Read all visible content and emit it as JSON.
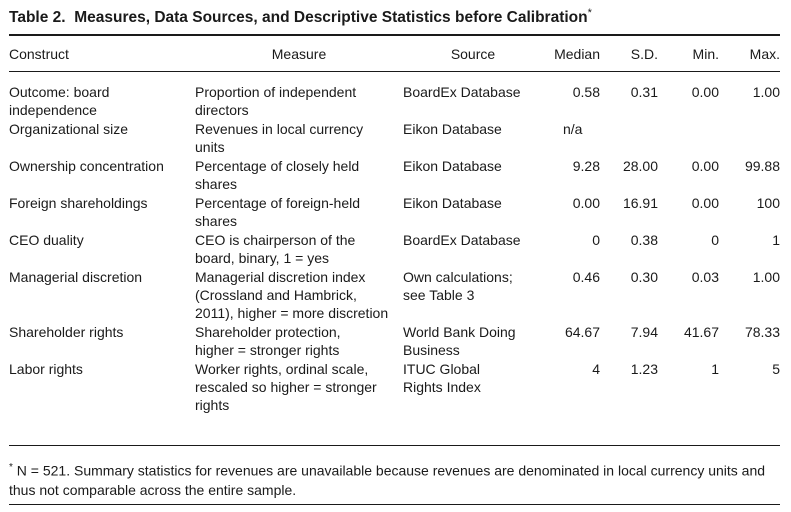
{
  "table": {
    "label": "Table 2.",
    "title": "Measures, Data Sources, and Descriptive Statistics before Calibration",
    "title_mark": "*",
    "headers": [
      "Construct",
      "Measure",
      "Source",
      "Median",
      "S.D.",
      "Min.",
      "Max."
    ],
    "rows": [
      {
        "construct": "Outcome: board independence",
        "measure": "Proportion of independent directors",
        "source": "BoardEx Database",
        "median": "0.58",
        "sd": "0.31",
        "min": "0.00",
        "max": "1.00"
      },
      {
        "construct": "Organizational size",
        "measure": "Revenues in local currency units",
        "source": "Eikon Database",
        "median": "n/a",
        "sd": "",
        "min": "",
        "max": ""
      },
      {
        "construct": "Ownership concentration",
        "measure": "Percentage of closely held shares",
        "source": "Eikon Database",
        "median": "9.28",
        "sd": "28.00",
        "min": "0.00",
        "max": "99.88"
      },
      {
        "construct": "Foreign shareholdings",
        "measure": "Percentage of foreign-held shares",
        "source": "Eikon Database",
        "median": "0.00",
        "sd": "16.91",
        "min": "0.00",
        "max": "100"
      },
      {
        "construct": "CEO duality",
        "measure": "CEO is chairperson of the board, binary, 1 = yes",
        "source": "BoardEx Database",
        "median": "0",
        "sd": "0.38",
        "min": "0",
        "max": "1"
      },
      {
        "construct": "Managerial discretion",
        "measure": "Managerial discretion index (Crossland and Hambrick, 2011), higher = more discretion",
        "source": "Own calculations; see Table 3",
        "median": "0.46",
        "sd": "0.30",
        "min": "0.03",
        "max": "1.00"
      },
      {
        "construct": "Shareholder rights",
        "measure": "Shareholder protection, higher = stronger rights",
        "source": "World Bank Doing Business",
        "median": "64.67",
        "sd": "7.94",
        "min": "41.67",
        "max": "78.33"
      },
      {
        "construct": "Labor rights",
        "measure": "Worker rights, ordinal scale, rescaled so higher = stronger rights",
        "source": "ITUC Global Rights Index",
        "median": "4",
        "sd": "1.23",
        "min": "1",
        "max": "5"
      }
    ]
  },
  "footnote": {
    "mark": "*",
    "text": " N = 521. Summary statistics for revenues are unavailable because revenues are denominated in local currency units and thus not comparable across the entire sample."
  }
}
